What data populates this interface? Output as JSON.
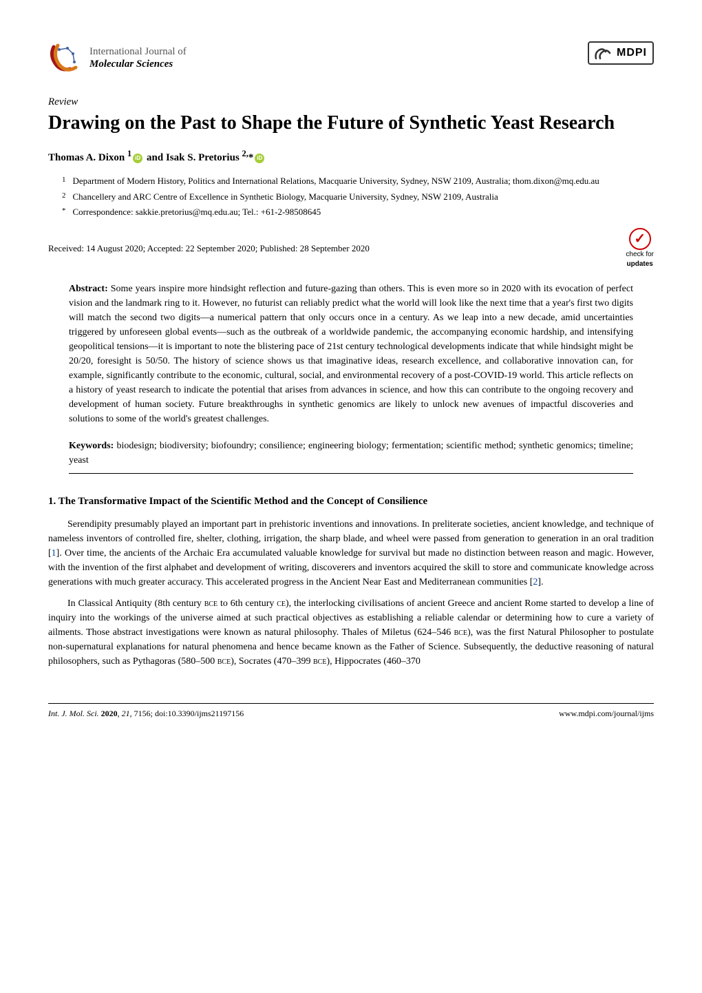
{
  "journal": {
    "name_line1": "International Journal of",
    "name_line2": "Molecular Sciences",
    "publisher": "MDPI"
  },
  "review_label": "Review",
  "title": "Drawing on the Past to Shape the Future of Synthetic Yeast Research",
  "authors_html": "Thomas A. Dixon <sup>1</sup><span class='orcid-icon' data-name='orcid-icon' data-interactable='false'></span> and Isak S. Pretorius <sup>2,</sup>*<span class='orcid-icon' data-name='orcid-icon' data-interactable='false'></span>",
  "affiliations": [
    {
      "num": "1",
      "text": "Department of Modern History, Politics and International Relations, Macquarie University, Sydney, NSW 2109, Australia; thom.dixon@mq.edu.au"
    },
    {
      "num": "2",
      "text": "Chancellery and ARC Centre of Excellence in Synthetic Biology, Macquarie University, Sydney, NSW 2109, Australia"
    },
    {
      "num": "*",
      "text": "Correspondence: sakkie.pretorius@mq.edu.au; Tel.: +61-2-98508645"
    }
  ],
  "dates": "Received: 14 August 2020; Accepted: 22 September 2020; Published: 28 September 2020",
  "updates_badge": {
    "line1": "check for",
    "line2": "updates"
  },
  "abstract_label": "Abstract:",
  "abstract_text": " Some years inspire more hindsight reflection and future-gazing than others. This is even more so in 2020 with its evocation of perfect vision and the landmark ring to it. However, no futurist can reliably predict what the world will look like the next time that a year's first two digits will match the second two digits—a numerical pattern that only occurs once in a century. As we leap into a new decade, amid uncertainties triggered by unforeseen global events—such as the outbreak of a worldwide pandemic, the accompanying economic hardship, and intensifying geopolitical tensions—it is important to note the blistering pace of 21st century technological developments indicate that while hindsight might be 20/20, foresight is 50/50. The history of science shows us that imaginative ideas, research excellence, and collaborative innovation can, for example, significantly contribute to the economic, cultural, social, and environmental recovery of a post-COVID-19 world. This article reflects on a history of yeast research to indicate the potential that arises from advances in science, and how this can contribute to the ongoing recovery and development of human society. Future breakthroughs in synthetic genomics are likely to unlock new avenues of impactful discoveries and solutions to some of the world's greatest challenges.",
  "keywords_label": "Keywords:",
  "keywords_text": " biodesign; biodiversity; biofoundry; consilience; engineering biology; fermentation; scientific method; synthetic genomics; timeline; yeast",
  "section1_heading": "1. The Transformative Impact of the Scientific Method and the Concept of Consilience",
  "body": {
    "p1_a": "Serendipity presumably played an important part in prehistoric inventions and innovations. In preliterate societies, ancient knowledge, and technique of nameless inventors of controlled fire, shelter, clothing, irrigation, the sharp blade, and wheel were passed from generation to generation in an oral tradition [",
    "p1_ref1": "1",
    "p1_b": "]. Over time, the ancients of the Archaic Era accumulated valuable knowledge for survival but made no distinction between reason and magic. However, with the invention of the first alphabet and development of writing, discoverers and inventors acquired the skill to store and communicate knowledge across generations with much greater accuracy. This accelerated progress in the Ancient Near East and Mediterranean communities [",
    "p1_ref2": "2",
    "p1_c": "].",
    "p2": "In Classical Antiquity (8th century ",
    "p2_bce": "bce",
    "p2_b": " to 6th century ",
    "p2_ce": "ce",
    "p2_c": "), the interlocking civilisations of ancient Greece and ancient Rome started to develop a line of inquiry into the workings of the universe aimed at such practical objectives as establishing a reliable calendar or determining how to cure a variety of ailments. Those abstract investigations were known as natural philosophy. Thales of Miletus (624–546 ",
    "p2_bce2": "bce",
    "p2_d": "), was the first Natural Philosopher to postulate non-supernatural explanations for natural phenomena and hence became known as the Father of Science. Subsequently, the deductive reasoning of natural philosophers, such as Pythagoras (580–500 ",
    "p2_bce3": "bce",
    "p2_e": "), Socrates (470–399 ",
    "p2_bce4": "bce",
    "p2_f": "), Hippocrates (460–370"
  },
  "footer": {
    "left_a": "Int. J. Mol. Sci. ",
    "left_b": "2020",
    "left_c": ", ",
    "left_d": "21",
    "left_e": ", 7156; doi:10.3390/ijms21197156",
    "right": "www.mdpi.com/journal/ijms"
  },
  "colors": {
    "logo_red": "#a01818",
    "logo_orange": "#d97818",
    "logo_blue": "#4060a0",
    "orcid_green": "#a6ce39",
    "ref_blue": "#0645ad",
    "updates_red": "#c00000"
  }
}
